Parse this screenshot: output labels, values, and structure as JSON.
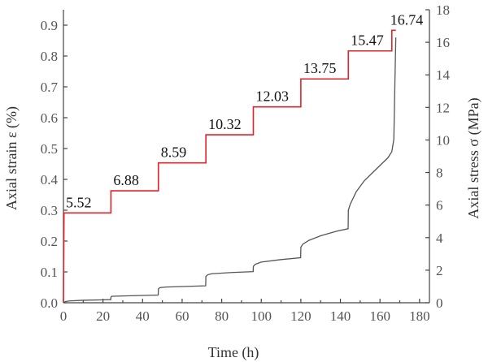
{
  "chart_data": {
    "type": "line",
    "xlabel": "Time (h)",
    "ylabel_left": "Axial strain ε (%)",
    "ylabel_right": "Axial stress σ (MPa)",
    "xlim": [
      0,
      185
    ],
    "ylim_left": [
      0,
      0.95
    ],
    "ylim_right": [
      0,
      18
    ],
    "x_ticks": [
      "0",
      "20",
      "40",
      "60",
      "80",
      "100",
      "120",
      "140",
      "160",
      "180"
    ],
    "y_left_ticks": [
      "0.0",
      "0.1",
      "0.2",
      "0.3",
      "0.4",
      "0.5",
      "0.6",
      "0.7",
      "0.8",
      "0.9"
    ],
    "y_right_ticks": [
      "0",
      "2",
      "4",
      "6",
      "8",
      "10",
      "12",
      "14",
      "16",
      "18"
    ],
    "grid": false,
    "legend": "none",
    "series": [
      {
        "axis": "right",
        "color": "#e0242b",
        "x": [
          0,
          0.3,
          24,
          24,
          48,
          48,
          72,
          72,
          96,
          96,
          120,
          120,
          144,
          144,
          166,
          166,
          168
        ],
        "y": [
          0,
          5.52,
          5.52,
          6.88,
          6.88,
          8.59,
          8.59,
          10.32,
          10.32,
          12.03,
          12.03,
          13.75,
          13.75,
          15.47,
          15.47,
          16.74,
          16.74
        ],
        "step_labels": [
          "5.52",
          "6.88",
          "8.59",
          "10.32",
          "12.03",
          "13.75",
          "15.47",
          "16.74"
        ]
      },
      {
        "axis": "left",
        "color": "#555555",
        "x": [
          0,
          1,
          3,
          10,
          23.9,
          24,
          24.5,
          47.9,
          48,
          48.8,
          52,
          71.9,
          72,
          73,
          75,
          85,
          95.9,
          96,
          97,
          100,
          110,
          119.9,
          120,
          121,
          124,
          130,
          138,
          143.9,
          144,
          145,
          148,
          152,
          156,
          160,
          164,
          166,
          167,
          167.5,
          168
        ],
        "y": [
          0,
          0.004,
          0.006,
          0.008,
          0.01,
          0.018,
          0.021,
          0.025,
          0.045,
          0.049,
          0.051,
          0.055,
          0.085,
          0.091,
          0.094,
          0.098,
          0.101,
          0.118,
          0.125,
          0.132,
          0.14,
          0.146,
          0.18,
          0.19,
          0.202,
          0.217,
          0.232,
          0.24,
          0.3,
          0.32,
          0.36,
          0.395,
          0.42,
          0.445,
          0.47,
          0.49,
          0.53,
          0.7,
          0.86
        ]
      }
    ]
  }
}
